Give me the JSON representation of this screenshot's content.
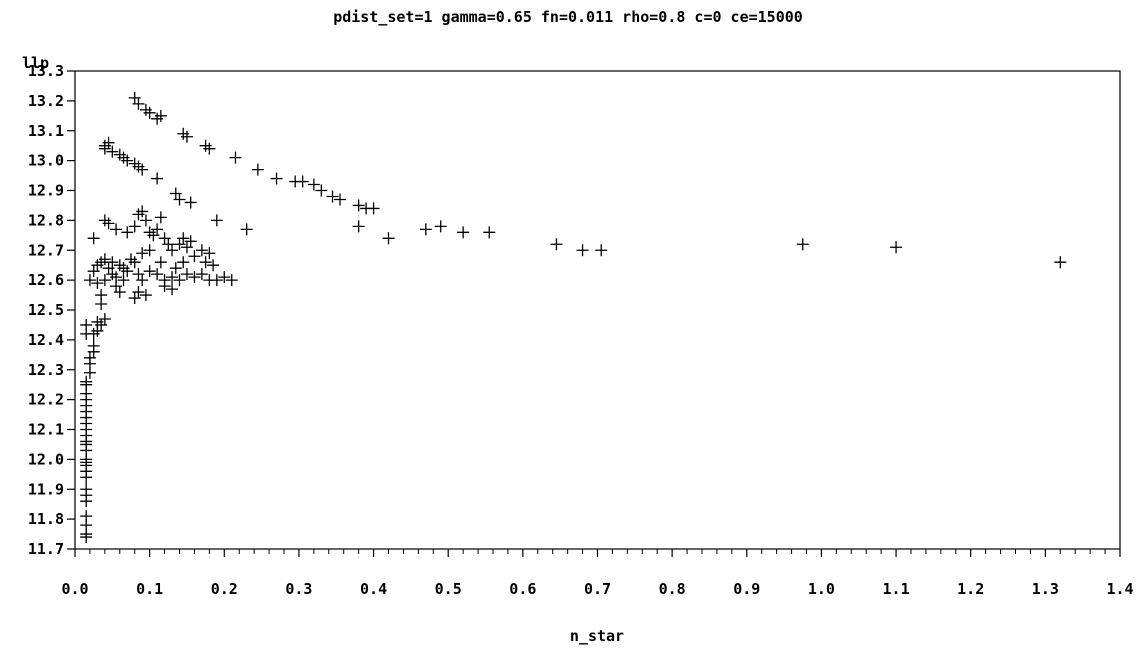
{
  "chart_data": {
    "type": "scatter",
    "title": "pdist_set=1 gamma=0.65 fn=0.011 rho=0.8 c=0 ce=15000",
    "xlabel": "n_star",
    "ylabel": "llp",
    "xlim": [
      0.0,
      1.4
    ],
    "ylim": [
      11.7,
      13.3
    ],
    "x_ticks": [
      "0.0",
      "0.1",
      "0.2",
      "0.3",
      "0.4",
      "0.5",
      "0.6",
      "0.7",
      "0.8",
      "0.9",
      "1.0",
      "1.1",
      "1.2",
      "1.3",
      "1.4"
    ],
    "y_ticks": [
      "11.7",
      "11.8",
      "11.9",
      "12.0",
      "12.1",
      "12.2",
      "12.3",
      "12.4",
      "12.5",
      "12.6",
      "12.7",
      "12.8",
      "12.9",
      "13.0",
      "13.1",
      "13.2",
      "13.3"
    ],
    "grid": false,
    "marker": "plus",
    "color": "#000000",
    "points": [
      [
        0.08,
        13.21
      ],
      [
        0.085,
        13.19
      ],
      [
        0.095,
        13.17
      ],
      [
        0.1,
        13.16
      ],
      [
        0.11,
        13.14
      ],
      [
        0.115,
        13.15
      ],
      [
        0.145,
        13.09
      ],
      [
        0.15,
        13.08
      ],
      [
        0.175,
        13.05
      ],
      [
        0.18,
        13.04
      ],
      [
        0.215,
        13.01
      ],
      [
        0.245,
        12.97
      ],
      [
        0.27,
        12.94
      ],
      [
        0.295,
        12.93
      ],
      [
        0.305,
        12.93
      ],
      [
        0.32,
        12.92
      ],
      [
        0.33,
        12.9
      ],
      [
        0.345,
        12.88
      ],
      [
        0.355,
        12.87
      ],
      [
        0.38,
        12.85
      ],
      [
        0.39,
        12.84
      ],
      [
        0.4,
        12.84
      ],
      [
        0.38,
        12.78
      ],
      [
        0.42,
        12.74
      ],
      [
        0.47,
        12.77
      ],
      [
        0.49,
        12.78
      ],
      [
        0.52,
        12.76
      ],
      [
        0.555,
        12.76
      ],
      [
        0.645,
        12.72
      ],
      [
        0.68,
        12.7
      ],
      [
        0.705,
        12.7
      ],
      [
        0.975,
        12.72
      ],
      [
        1.1,
        12.71
      ],
      [
        1.32,
        12.66
      ],
      [
        0.04,
        13.05
      ],
      [
        0.045,
        13.06
      ],
      [
        0.04,
        13.04
      ],
      [
        0.05,
        13.03
      ],
      [
        0.06,
        13.02
      ],
      [
        0.065,
        13.01
      ],
      [
        0.07,
        13.0
      ],
      [
        0.08,
        12.99
      ],
      [
        0.085,
        12.98
      ],
      [
        0.09,
        12.97
      ],
      [
        0.11,
        12.94
      ],
      [
        0.135,
        12.89
      ],
      [
        0.14,
        12.87
      ],
      [
        0.155,
        12.86
      ],
      [
        0.19,
        12.8
      ],
      [
        0.23,
        12.77
      ],
      [
        0.04,
        12.8
      ],
      [
        0.045,
        12.79
      ],
      [
        0.055,
        12.77
      ],
      [
        0.07,
        12.76
      ],
      [
        0.08,
        12.78
      ],
      [
        0.085,
        12.82
      ],
      [
        0.09,
        12.83
      ],
      [
        0.095,
        12.8
      ],
      [
        0.1,
        12.76
      ],
      [
        0.105,
        12.75
      ],
      [
        0.11,
        12.77
      ],
      [
        0.115,
        12.81
      ],
      [
        0.12,
        12.74
      ],
      [
        0.125,
        12.72
      ],
      [
        0.13,
        12.7
      ],
      [
        0.14,
        12.72
      ],
      [
        0.145,
        12.74
      ],
      [
        0.15,
        12.71
      ],
      [
        0.155,
        12.73
      ],
      [
        0.16,
        12.68
      ],
      [
        0.17,
        12.7
      ],
      [
        0.175,
        12.66
      ],
      [
        0.18,
        12.69
      ],
      [
        0.185,
        12.65
      ],
      [
        0.03,
        12.65
      ],
      [
        0.035,
        12.66
      ],
      [
        0.04,
        12.67
      ],
      [
        0.05,
        12.66
      ],
      [
        0.06,
        12.65
      ],
      [
        0.065,
        12.64
      ],
      [
        0.07,
        12.63
      ],
      [
        0.08,
        12.66
      ],
      [
        0.085,
        12.62
      ],
      [
        0.09,
        12.6
      ],
      [
        0.1,
        12.63
      ],
      [
        0.11,
        12.62
      ],
      [
        0.12,
        12.6
      ],
      [
        0.13,
        12.61
      ],
      [
        0.14,
        12.6
      ],
      [
        0.15,
        12.62
      ],
      [
        0.16,
        12.61
      ],
      [
        0.17,
        12.62
      ],
      [
        0.18,
        12.6
      ],
      [
        0.19,
        12.6
      ],
      [
        0.2,
        12.61
      ],
      [
        0.21,
        12.6
      ],
      [
        0.02,
        12.6
      ],
      [
        0.025,
        12.63
      ],
      [
        0.03,
        12.59
      ],
      [
        0.04,
        12.6
      ],
      [
        0.05,
        12.62
      ],
      [
        0.055,
        12.58
      ],
      [
        0.06,
        12.56
      ],
      [
        0.08,
        12.54
      ],
      [
        0.085,
        12.56
      ],
      [
        0.095,
        12.55
      ],
      [
        0.12,
        12.58
      ],
      [
        0.13,
        12.57
      ],
      [
        0.075,
        12.67
      ],
      [
        0.09,
        12.69
      ],
      [
        0.1,
        12.7
      ],
      [
        0.115,
        12.66
      ],
      [
        0.135,
        12.64
      ],
      [
        0.145,
        12.66
      ],
      [
        0.045,
        12.64
      ],
      [
        0.055,
        12.61
      ],
      [
        0.065,
        12.6
      ],
      [
        0.025,
        12.74
      ],
      [
        0.035,
        12.52
      ],
      [
        0.035,
        12.55
      ],
      [
        0.03,
        12.46
      ],
      [
        0.035,
        12.45
      ],
      [
        0.04,
        12.47
      ],
      [
        0.03,
        12.43
      ],
      [
        0.025,
        12.42
      ],
      [
        0.025,
        12.38
      ],
      [
        0.025,
        12.36
      ],
      [
        0.02,
        12.34
      ],
      [
        0.02,
        12.32
      ],
      [
        0.015,
        12.45
      ],
      [
        0.015,
        12.42
      ],
      [
        0.02,
        12.29
      ],
      [
        0.015,
        12.26
      ],
      [
        0.015,
        12.25
      ],
      [
        0.015,
        12.22
      ],
      [
        0.015,
        12.2
      ],
      [
        0.015,
        12.18
      ],
      [
        0.015,
        12.16
      ],
      [
        0.015,
        12.14
      ],
      [
        0.015,
        12.12
      ],
      [
        0.015,
        12.1
      ],
      [
        0.015,
        12.08
      ],
      [
        0.015,
        12.06
      ],
      [
        0.015,
        12.05
      ],
      [
        0.015,
        12.03
      ],
      [
        0.015,
        12.0
      ],
      [
        0.015,
        11.99
      ],
      [
        0.015,
        11.98
      ],
      [
        0.015,
        11.96
      ],
      [
        0.015,
        11.94
      ],
      [
        0.015,
        11.9
      ],
      [
        0.015,
        11.88
      ],
      [
        0.015,
        11.86
      ],
      [
        0.015,
        11.81
      ],
      [
        0.015,
        11.78
      ],
      [
        0.015,
        11.75
      ],
      [
        0.015,
        11.74
      ]
    ]
  }
}
